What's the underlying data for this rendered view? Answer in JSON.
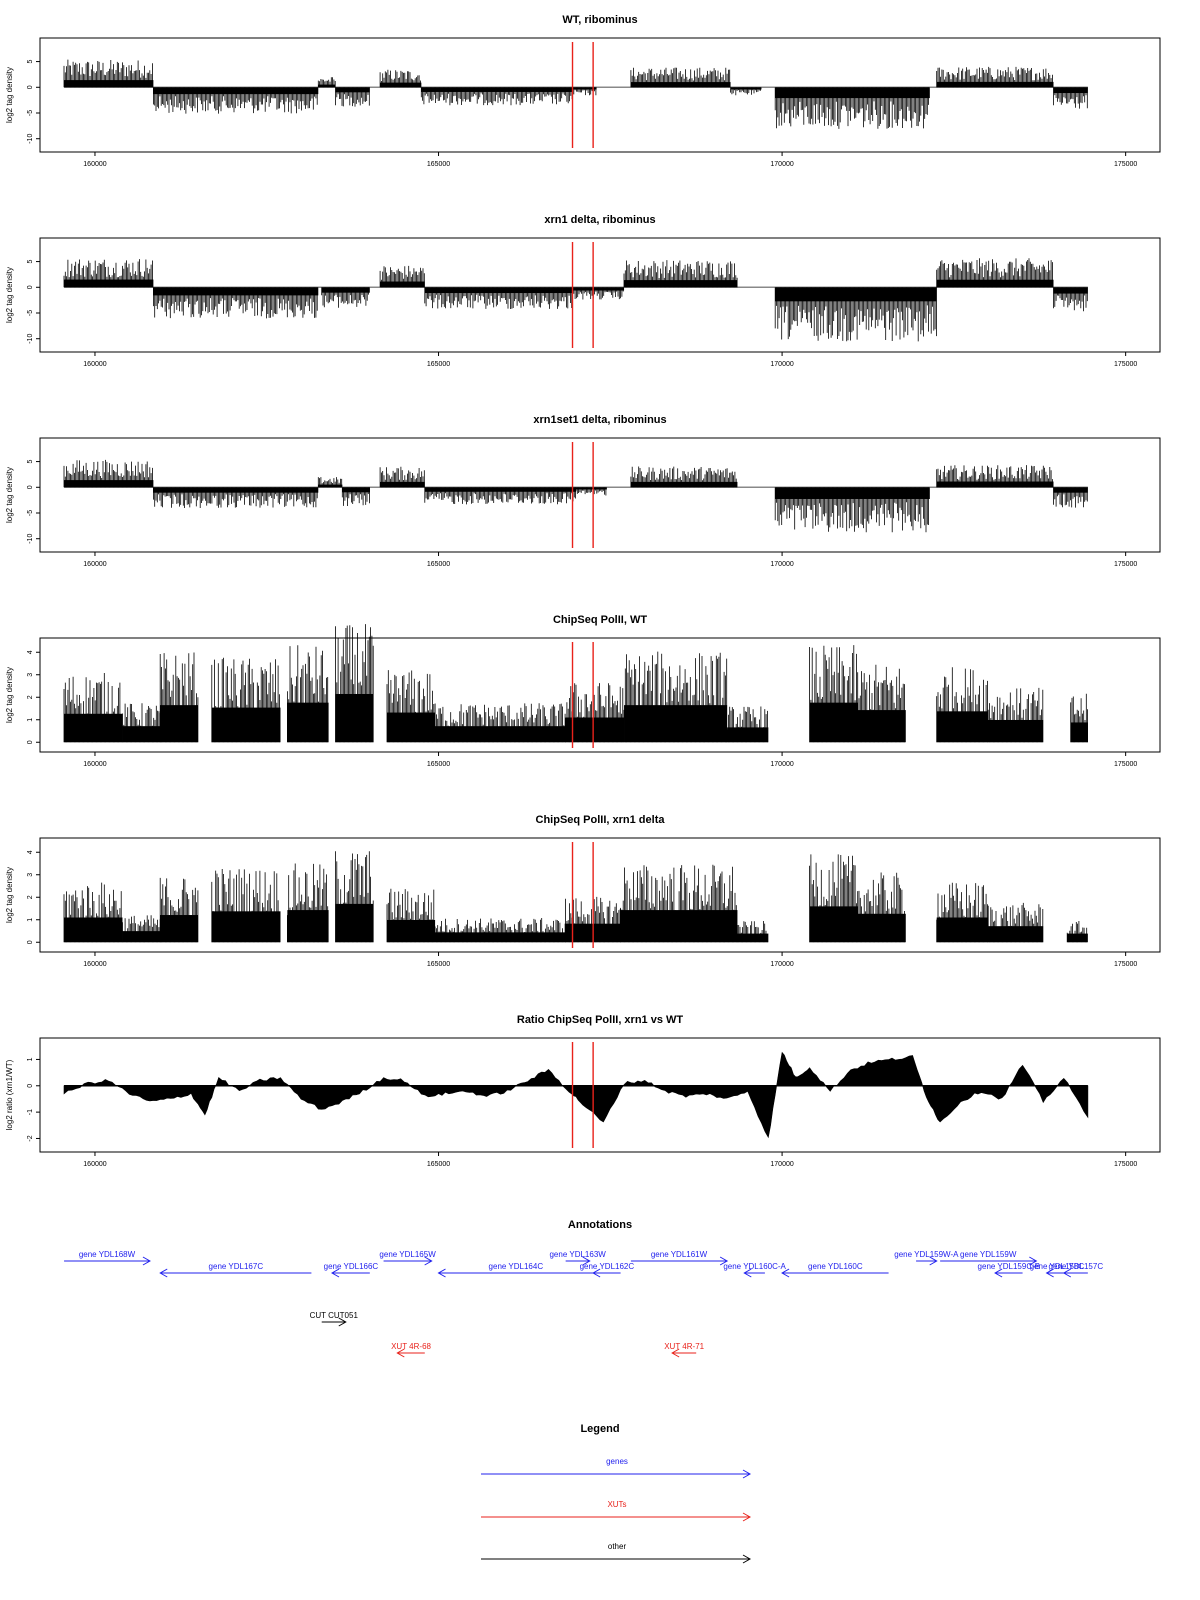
{
  "colors": {
    "marker": "#e8221b",
    "gene": "#2222ee",
    "xut": "#e8221b",
    "other": "#000000",
    "bars": "#000000"
  },
  "chart_data": [
    {
      "type": "bar",
      "title": "WT, ribominus",
      "ylabel": "log2 tag density",
      "xlim": [
        159500,
        175000
      ],
      "ylim": [
        -12,
        9
      ],
      "x_ticks": [
        "160000",
        "165000",
        "170000",
        "175000"
      ],
      "y_ticks": [
        "-10",
        "-5",
        "0",
        "5"
      ],
      "markers_x": [
        166950,
        167250
      ],
      "segments": [
        {
          "x0": 159550,
          "x1": 160850,
          "value": 4.0
        },
        {
          "x0": 160850,
          "x1": 163250,
          "value": -3.8
        },
        {
          "x0": 163250,
          "x1": 163500,
          "value": 1.5
        },
        {
          "x0": 163500,
          "x1": 164000,
          "value": -2.8
        },
        {
          "x0": 164150,
          "x1": 164750,
          "value": 2.6
        },
        {
          "x0": 164750,
          "x1": 166950,
          "value": -2.6
        },
        {
          "x0": 166950,
          "x1": 167300,
          "value": -1.2
        },
        {
          "x0": 167800,
          "x1": 169250,
          "value": 2.9
        },
        {
          "x0": 169250,
          "x1": 169700,
          "value": -1.2
        },
        {
          "x0": 169900,
          "x1": 172150,
          "value": -6.0
        },
        {
          "x0": 172250,
          "x1": 173950,
          "value": 3.0
        },
        {
          "x0": 173950,
          "x1": 174450,
          "value": -3.2
        }
      ]
    },
    {
      "type": "bar",
      "title": "xrn1 delta, ribominus",
      "ylabel": "log2 tag density",
      "xlim": [
        159500,
        175000
      ],
      "ylim": [
        -12,
        9
      ],
      "x_ticks": [
        "160000",
        "165000",
        "170000",
        "175000"
      ],
      "y_ticks": [
        "-10",
        "-5",
        "0",
        "5"
      ],
      "markers_x": [
        166950,
        167250
      ],
      "segments": [
        {
          "x0": 159550,
          "x1": 160850,
          "value": 4.3
        },
        {
          "x0": 160850,
          "x1": 163250,
          "value": -4.5
        },
        {
          "x0": 163300,
          "x1": 164000,
          "value": -3.0
        },
        {
          "x0": 164150,
          "x1": 164800,
          "value": 3.2
        },
        {
          "x0": 164800,
          "x1": 166950,
          "value": -3.2
        },
        {
          "x0": 166950,
          "x1": 167700,
          "value": -1.8
        },
        {
          "x0": 167700,
          "x1": 169350,
          "value": 4.0
        },
        {
          "x0": 169900,
          "x1": 172250,
          "value": -7.8
        },
        {
          "x0": 172250,
          "x1": 173950,
          "value": 4.2
        },
        {
          "x0": 173950,
          "x1": 174450,
          "value": -3.5
        }
      ]
    },
    {
      "type": "bar",
      "title": "xrn1set1 delta, ribominus",
      "ylabel": "log2 tag density",
      "xlim": [
        159500,
        175000
      ],
      "ylim": [
        -12,
        9
      ],
      "x_ticks": [
        "160000",
        "165000",
        "170000",
        "175000"
      ],
      "y_ticks": [
        "-10",
        "-5",
        "0",
        "5"
      ],
      "markers_x": [
        166950,
        167250
      ],
      "segments": [
        {
          "x0": 159550,
          "x1": 160850,
          "value": 4.0
        },
        {
          "x0": 160850,
          "x1": 163250,
          "value": -3.0
        },
        {
          "x0": 163250,
          "x1": 163600,
          "value": 1.5
        },
        {
          "x0": 163600,
          "x1": 164000,
          "value": -2.8
        },
        {
          "x0": 164150,
          "x1": 164800,
          "value": 3.0
        },
        {
          "x0": 164800,
          "x1": 167000,
          "value": -2.5
        },
        {
          "x0": 167000,
          "x1": 167450,
          "value": -1.2
        },
        {
          "x0": 167800,
          "x1": 169350,
          "value": 3.0
        },
        {
          "x0": 169900,
          "x1": 172150,
          "value": -6.5
        },
        {
          "x0": 172250,
          "x1": 173950,
          "value": 3.2
        },
        {
          "x0": 173950,
          "x1": 174450,
          "value": -3.0
        }
      ]
    },
    {
      "type": "bar",
      "title": "ChipSeq PolII, WT",
      "ylabel": "log2 tag density",
      "xlim": [
        159500,
        175000
      ],
      "ylim": [
        -0.3,
        4.5
      ],
      "x_ticks": [
        "160000",
        "165000",
        "170000",
        "175000"
      ],
      "y_ticks": [
        "0",
        "1",
        "2",
        "3",
        "4"
      ],
      "markers_x": [
        166950,
        167250
      ],
      "segments": [
        {
          "x0": 159550,
          "x1": 160400,
          "value": 2.3
        },
        {
          "x0": 160400,
          "x1": 160950,
          "value": 1.3
        },
        {
          "x0": 160950,
          "x1": 161500,
          "value": 3.0
        },
        {
          "x0": 161700,
          "x1": 162700,
          "value": 2.8
        },
        {
          "x0": 162800,
          "x1": 163400,
          "value": 3.2
        },
        {
          "x0": 163500,
          "x1": 164050,
          "value": 3.9
        },
        {
          "x0": 164250,
          "x1": 164950,
          "value": 2.4
        },
        {
          "x0": 164950,
          "x1": 166850,
          "value": 1.3
        },
        {
          "x0": 166850,
          "x1": 167700,
          "value": 2.0
        },
        {
          "x0": 167700,
          "x1": 169200,
          "value": 3.0
        },
        {
          "x0": 169200,
          "x1": 169800,
          "value": 1.2
        },
        {
          "x0": 170400,
          "x1": 171100,
          "value": 3.2
        },
        {
          "x0": 171100,
          "x1": 171800,
          "value": 2.6
        },
        {
          "x0": 172250,
          "x1": 173000,
          "value": 2.5
        },
        {
          "x0": 173000,
          "x1": 173800,
          "value": 1.8
        },
        {
          "x0": 174200,
          "x1": 174450,
          "value": 1.6
        }
      ]
    },
    {
      "type": "bar",
      "title": "ChipSeq PolII, xrn1 delta",
      "ylabel": "log2 tag density",
      "xlim": [
        159500,
        175000
      ],
      "ylim": [
        -0.3,
        4.5
      ],
      "x_ticks": [
        "160000",
        "165000",
        "170000",
        "175000"
      ],
      "y_ticks": [
        "0",
        "1",
        "2",
        "3",
        "4"
      ],
      "markers_x": [
        166950,
        167250
      ],
      "segments": [
        {
          "x0": 159550,
          "x1": 160400,
          "value": 2.0
        },
        {
          "x0": 160400,
          "x1": 160950,
          "value": 0.9
        },
        {
          "x0": 160950,
          "x1": 161500,
          "value": 2.2
        },
        {
          "x0": 161700,
          "x1": 162700,
          "value": 2.5
        },
        {
          "x0": 162800,
          "x1": 163400,
          "value": 2.6
        },
        {
          "x0": 163500,
          "x1": 164050,
          "value": 3.1
        },
        {
          "x0": 164250,
          "x1": 164950,
          "value": 1.8
        },
        {
          "x0": 164950,
          "x1": 166850,
          "value": 0.8
        },
        {
          "x0": 166850,
          "x1": 167650,
          "value": 1.5
        },
        {
          "x0": 167650,
          "x1": 169350,
          "value": 2.6
        },
        {
          "x0": 169350,
          "x1": 169800,
          "value": 0.7
        },
        {
          "x0": 170400,
          "x1": 171100,
          "value": 2.9
        },
        {
          "x0": 171100,
          "x1": 171800,
          "value": 2.3
        },
        {
          "x0": 172250,
          "x1": 173000,
          "value": 2.0
        },
        {
          "x0": 173000,
          "x1": 173800,
          "value": 1.3
        },
        {
          "x0": 174150,
          "x1": 174450,
          "value": 0.7
        }
      ]
    },
    {
      "type": "area",
      "title": "Ratio ChipSeq PolII, xrn1 vs WT",
      "ylabel": "log2 ratio (xrn1/WT)",
      "xlim": [
        159500,
        175000
      ],
      "ylim": [
        -2.4,
        1.7
      ],
      "x_ticks": [
        "160000",
        "165000",
        "170000",
        "175000"
      ],
      "y_ticks": [
        "-2",
        "-1",
        "0",
        "1"
      ],
      "markers_x": [
        166950,
        167250
      ],
      "x": [
        159550,
        159900,
        160200,
        160500,
        160800,
        161100,
        161400,
        161600,
        161800,
        162100,
        162400,
        162700,
        163000,
        163300,
        163600,
        163900,
        164200,
        164500,
        164800,
        165100,
        165400,
        165700,
        166000,
        166300,
        166600,
        166900,
        167100,
        167400,
        167700,
        168000,
        168300,
        168600,
        168900,
        169200,
        169500,
        169800,
        170000,
        170200,
        170400,
        170700,
        171000,
        171300,
        171600,
        171900,
        172100,
        172300,
        172600,
        172900,
        173200,
        173500,
        173800,
        174100,
        174450
      ],
      "y": [
        -0.3,
        0.1,
        0.2,
        -0.3,
        -0.6,
        -0.5,
        -0.3,
        -1.1,
        0.3,
        -0.2,
        0.2,
        0.3,
        -0.5,
        -0.9,
        -0.6,
        -0.2,
        0.3,
        0.2,
        -0.4,
        -0.3,
        -0.2,
        -0.4,
        -0.2,
        0.2,
        0.6,
        -0.2,
        -0.7,
        -1.4,
        0.1,
        0.2,
        -0.2,
        -0.4,
        -0.3,
        -0.5,
        -0.2,
        -2.0,
        1.3,
        0.3,
        0.7,
        -0.2,
        0.6,
        0.9,
        1.0,
        1.1,
        -0.4,
        -1.4,
        -0.6,
        -0.2,
        -0.5,
        0.8,
        -0.6,
        0.3,
        -1.2
      ]
    }
  ],
  "annotations_panel": {
    "title": "Annotations",
    "features": [
      {
        "label": "gene YDL168W",
        "kind": "gene",
        "strand": "+",
        "start": 159550,
        "end": 160800,
        "row": 0
      },
      {
        "label": "gene YDL167C",
        "kind": "gene",
        "strand": "-",
        "start": 160950,
        "end": 163150,
        "row": 1
      },
      {
        "label": "gene YDL166C",
        "kind": "gene",
        "strand": "-",
        "start": 163450,
        "end": 164000,
        "row": 1
      },
      {
        "label": "gene YDL165W",
        "kind": "gene",
        "strand": "+",
        "start": 164200,
        "end": 164900,
        "row": 0
      },
      {
        "label": "gene YDL164C",
        "kind": "gene",
        "strand": "-",
        "start": 165000,
        "end": 167250,
        "row": 1
      },
      {
        "label": "gene YDL163W",
        "kind": "gene",
        "strand": "+",
        "start": 166850,
        "end": 167200,
        "row": 0
      },
      {
        "label": "gene YDL162C",
        "kind": "gene",
        "strand": "-",
        "start": 167250,
        "end": 167650,
        "row": 1
      },
      {
        "label": "gene YDL161W",
        "kind": "gene",
        "strand": "+",
        "start": 167800,
        "end": 169200,
        "row": 0
      },
      {
        "label": "gene YDL160C-A",
        "kind": "gene",
        "strand": "-",
        "start": 169450,
        "end": 169750,
        "row": 1
      },
      {
        "label": "gene YDL160C",
        "kind": "gene",
        "strand": "-",
        "start": 170000,
        "end": 171550,
        "row": 1
      },
      {
        "label": "gene YDL159W-A",
        "kind": "gene",
        "strand": "+",
        "start": 171950,
        "end": 172250,
        "row": 0
      },
      {
        "label": "gene YDL159W",
        "kind": "gene",
        "strand": "+",
        "start": 172300,
        "end": 173700,
        "row": 0
      },
      {
        "label": "gene YDL159C-B",
        "kind": "gene",
        "strand": "-",
        "start": 173100,
        "end": 173500,
        "row": 1
      },
      {
        "label": "gene YDL158C",
        "kind": "gene",
        "strand": "-",
        "start": 173850,
        "end": 174150,
        "row": 1
      },
      {
        "label": "gene YDL157C",
        "kind": "gene",
        "strand": "-",
        "start": 174100,
        "end": 174450,
        "row": 1
      },
      {
        "label": "CUT CUT051",
        "kind": "other",
        "strand": "+",
        "start": 163300,
        "end": 163650,
        "row": 2
      },
      {
        "label": "XUT 4R-68",
        "kind": "xut",
        "strand": "-",
        "start": 164400,
        "end": 164800,
        "row": 3
      },
      {
        "label": "XUT 4R-71",
        "kind": "xut",
        "strand": "-",
        "start": 168400,
        "end": 168750,
        "row": 3
      }
    ]
  },
  "legend_panel": {
    "title": "Legend",
    "items": [
      {
        "label": "genes",
        "kind": "gene"
      },
      {
        "label": "XUTs",
        "kind": "xut"
      },
      {
        "label": "other",
        "kind": "other"
      }
    ]
  }
}
